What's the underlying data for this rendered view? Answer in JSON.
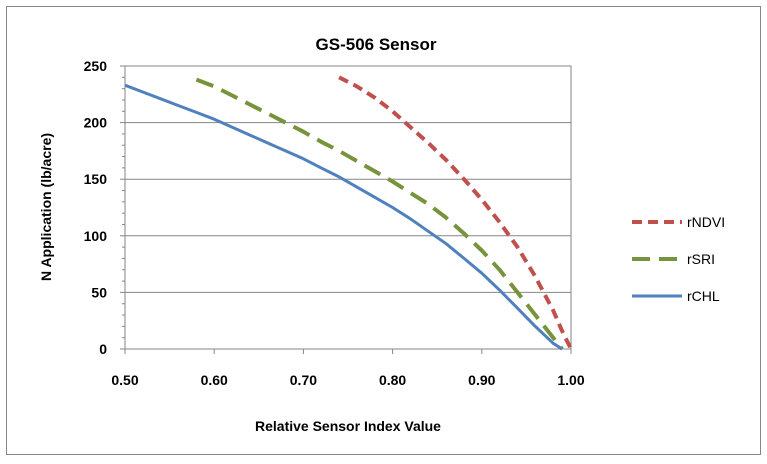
{
  "chart_data": {
    "type": "line",
    "title": "GS-506 Sensor",
    "xlabel": "Relative Sensor Index Value",
    "ylabel": "N Application (lb/acre)",
    "xlim": [
      0.5,
      1.0
    ],
    "ylim": [
      0,
      250
    ],
    "xticks": [
      "0.50",
      "0.60",
      "0.70",
      "0.80",
      "0.90",
      "1.00"
    ],
    "yticks": [
      "0",
      "50",
      "100",
      "150",
      "200",
      "250"
    ],
    "grid": "horizontal",
    "legend_position": "right",
    "series": [
      {
        "name": "rNDVI",
        "color": "#c0504d",
        "style": "dashed",
        "points": [
          [
            0.74,
            240
          ],
          [
            0.76,
            232
          ],
          [
            0.78,
            222
          ],
          [
            0.8,
            210
          ],
          [
            0.82,
            196
          ],
          [
            0.84,
            182
          ],
          [
            0.86,
            167
          ],
          [
            0.88,
            150
          ],
          [
            0.9,
            132
          ],
          [
            0.92,
            112
          ],
          [
            0.94,
            90
          ],
          [
            0.96,
            64
          ],
          [
            0.98,
            34
          ],
          [
            0.99,
            16
          ],
          [
            1.0,
            0
          ]
        ]
      },
      {
        "name": "rSRI",
        "color": "#77933c",
        "style": "dashed",
        "points": [
          [
            0.58,
            238
          ],
          [
            0.6,
            232
          ],
          [
            0.62,
            224
          ],
          [
            0.64,
            216
          ],
          [
            0.66,
            208
          ],
          [
            0.68,
            200
          ],
          [
            0.7,
            192
          ],
          [
            0.72,
            183
          ],
          [
            0.74,
            175
          ],
          [
            0.76,
            166
          ],
          [
            0.78,
            157
          ],
          [
            0.8,
            148
          ],
          [
            0.82,
            138
          ],
          [
            0.84,
            128
          ],
          [
            0.86,
            116
          ],
          [
            0.88,
            102
          ],
          [
            0.9,
            87
          ],
          [
            0.92,
            70
          ],
          [
            0.94,
            50
          ],
          [
            0.96,
            30
          ],
          [
            0.98,
            10
          ],
          [
            0.99,
            0
          ]
        ]
      },
      {
        "name": "rCHL",
        "color": "#4f81bd",
        "style": "solid",
        "points": [
          [
            0.5,
            233
          ],
          [
            0.52,
            227
          ],
          [
            0.54,
            221
          ],
          [
            0.56,
            215
          ],
          [
            0.58,
            209
          ],
          [
            0.6,
            203
          ],
          [
            0.62,
            196
          ],
          [
            0.64,
            189
          ],
          [
            0.66,
            182
          ],
          [
            0.68,
            175
          ],
          [
            0.7,
            168
          ],
          [
            0.72,
            160
          ],
          [
            0.74,
            152
          ],
          [
            0.76,
            143
          ],
          [
            0.78,
            134
          ],
          [
            0.8,
            125
          ],
          [
            0.82,
            115
          ],
          [
            0.84,
            104
          ],
          [
            0.86,
            93
          ],
          [
            0.88,
            80
          ],
          [
            0.9,
            67
          ],
          [
            0.92,
            52
          ],
          [
            0.94,
            36
          ],
          [
            0.96,
            20
          ],
          [
            0.98,
            5
          ],
          [
            0.99,
            0
          ]
        ]
      }
    ]
  }
}
